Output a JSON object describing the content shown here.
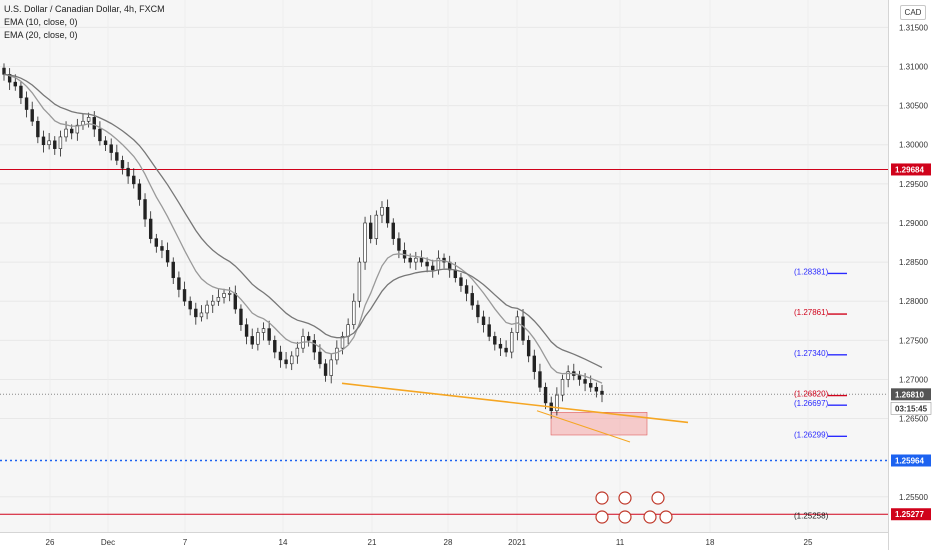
{
  "legend": {
    "title": "U.S. Dollar / Canadian Dollar, 4h, FXCM",
    "ema10": "EMA (10, close, 0)",
    "ema20": "EMA (20, close, 0)"
  },
  "currency": "CAD",
  "colors": {
    "bg": "#f6f6f6",
    "candle": "#222222",
    "ema_fast": "#999999",
    "ema_slow": "#777777",
    "trendline": "#f5a623",
    "resistance": "#d0021b",
    "support": "#1c62f0",
    "zone": "#f4a6a6"
  },
  "chart_data": {
    "type": "candlestick",
    "y_axis": {
      "min": 1.2505,
      "max": 1.3185,
      "ticks": [
        "1.31500",
        "1.31000",
        "1.30500",
        "1.30000",
        "1.29500",
        "1.29000",
        "1.28500",
        "1.28000",
        "1.27500",
        "1.27000",
        "1.26500",
        "1.25500"
      ]
    },
    "x_axis": {
      "ticks": [
        "26",
        "Dec",
        "7",
        "14",
        "21",
        "28",
        "2021",
        "11",
        "18",
        "25"
      ]
    },
    "price_labels": [
      {
        "text": "1.29684",
        "value": 1.29684,
        "style": "resistance"
      },
      {
        "text": "1.26810",
        "value": 1.2681,
        "style": "current"
      },
      {
        "text": "03:15:45",
        "value": 1.2663,
        "style": "countdown"
      },
      {
        "text": "1.25964",
        "value": 1.25964,
        "style": "support"
      },
      {
        "text": "1.25277",
        "value": 1.25277,
        "style": "resistance"
      }
    ],
    "order_levels": [
      {
        "text": "(1.28381)",
        "value": 1.28381,
        "color": "blue"
      },
      {
        "text": "(1.27861)",
        "value": 1.27861,
        "color": "red"
      },
      {
        "text": "(1.27340)",
        "value": 1.2734,
        "color": "blue"
      },
      {
        "text": "(1.26820)",
        "value": 1.2682,
        "color": "red"
      },
      {
        "text": "(1.26697)",
        "value": 1.26697,
        "color": "blue"
      },
      {
        "text": "(1.26299)",
        "value": 1.26299,
        "color": "blue"
      },
      {
        "text": "(1.25258)",
        "value": 1.25258,
        "color": "dark"
      }
    ],
    "trendlines": [
      {
        "from": [
          342,
          1.2695
        ],
        "to": [
          688,
          1.2645
        ],
        "color": "orange"
      },
      {
        "from": [
          537,
          1.266
        ],
        "to": [
          630,
          1.262
        ],
        "color": "orange"
      }
    ],
    "zone": {
      "x0": 551,
      "x1": 647,
      "y0": 1.2658,
      "y1": 1.2629
    },
    "series_close": [
      1.309,
      1.308,
      1.3075,
      1.306,
      1.3045,
      1.303,
      1.301,
      1.3,
      1.3005,
      1.2995,
      1.301,
      1.302,
      1.3015,
      1.3025,
      1.303,
      1.3035,
      1.302,
      1.3005,
      1.3,
      1.299,
      1.298,
      1.297,
      1.296,
      1.295,
      1.293,
      1.2905,
      1.288,
      1.287,
      1.2865,
      1.285,
      1.283,
      1.2815,
      1.28,
      1.279,
      1.278,
      1.2785,
      1.2795,
      1.28,
      1.2805,
      1.281,
      1.281,
      1.279,
      1.277,
      1.2755,
      1.2745,
      1.276,
      1.2765,
      1.275,
      1.2735,
      1.2725,
      1.272,
      1.273,
      1.274,
      1.2755,
      1.275,
      1.2735,
      1.272,
      1.2705,
      1.2725,
      1.274,
      1.2755,
      1.277,
      1.28,
      1.285,
      1.29,
      1.288,
      1.291,
      1.292,
      1.29,
      1.288,
      1.2865,
      1.2855,
      1.285,
      1.2855,
      1.285,
      1.2845,
      1.284,
      1.2855,
      1.285,
      1.284,
      1.283,
      1.282,
      1.281,
      1.2795,
      1.278,
      1.277,
      1.2755,
      1.2745,
      1.274,
      1.2735,
      1.276,
      1.278,
      1.275,
      1.273,
      1.271,
      1.269,
      1.267,
      1.266,
      1.268,
      1.27,
      1.271,
      1.2705,
      1.27,
      1.2695,
      1.269,
      1.2685,
      1.2681
    ]
  }
}
